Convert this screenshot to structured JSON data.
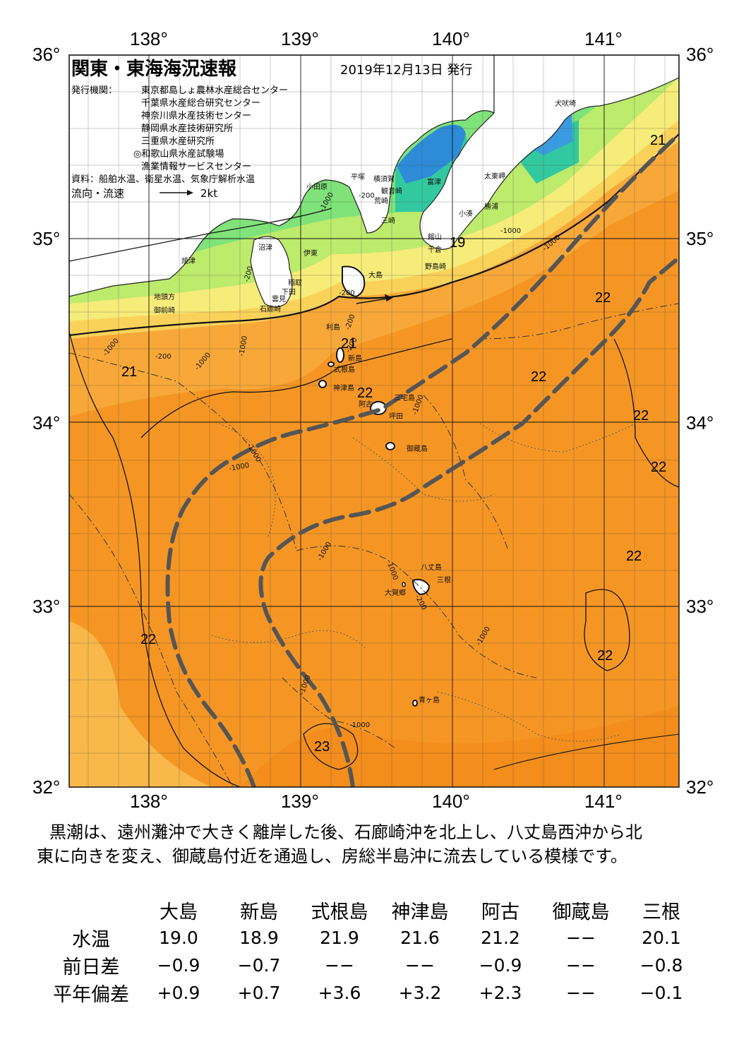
{
  "map": {
    "title": "関東・東海海況速報",
    "date": "2019年12月13日 発行",
    "issuer_label": "発行機関：",
    "issuers": [
      "東京都島しょ農林水産総合センター",
      "千葉県水産総合研究センター",
      "神奈川県水産技術センター",
      "静岡県水産技術研究所",
      "三重県水産研究所",
      "◎和歌山県水産試験場",
      "漁業情報サービスセンター"
    ],
    "sources": "資料：船舶水温、衛星水温、気象庁解析水温",
    "current_label": "流向・流速",
    "current_scale": "2kt",
    "lon_labels": [
      "138°",
      "139°",
      "140°",
      "141°"
    ],
    "lat_labels": [
      "36°",
      "35°",
      "34°",
      "33°",
      "32°"
    ],
    "temp_labels": [
      "21",
      "19",
      "22",
      "21",
      "21",
      "22",
      "22",
      "22",
      "22",
      "22",
      "22",
      "22",
      "23"
    ],
    "depth_labels": [
      "-1000",
      "-200",
      "-1000",
      "-1000",
      "-200",
      "-1000",
      "-200",
      "-200",
      "-1000",
      "-1000",
      "-200",
      "-1000",
      "-1000",
      "-1000",
      "-1000",
      "-1000",
      "-1000",
      "-1000",
      "-200",
      "-1000",
      "-200"
    ],
    "places": [
      "犬吠埼",
      "太東岬",
      "勝浦",
      "小湊",
      "富津",
      "横須賀",
      "観音崎",
      "平塚",
      "小田原",
      "荒崎",
      "三崎",
      "館山",
      "千倉",
      "野島崎",
      "沼津",
      "伊東",
      "焼津",
      "稲取",
      "下田",
      "雲見",
      "石廊崎",
      "地頭方",
      "御前崎",
      "大島",
      "利島",
      "新島",
      "式根島",
      "神津島",
      "三宅島",
      "阿古",
      "坪田",
      "御蔵島",
      "八丈島",
      "三根",
      "大賀郷",
      "青ヶ島"
    ]
  },
  "description": {
    "line1": "黒潮は、遠州灘沖で大きく離岸した後、石廊崎沖を北上し、八丈島西沖から北",
    "line2": "東に向きを変え、御蔵島付近を通過し、房総半島沖に流去している模様です。"
  },
  "table": {
    "columns": [
      "大島",
      "新島",
      "式根島",
      "神津島",
      "阿古",
      "御蔵島",
      "三根"
    ],
    "rows": [
      {
        "label": "水温",
        "values": [
          "19.0",
          "18.9",
          "21.9",
          "21.6",
          "21.2",
          "−−",
          "20.1"
        ]
      },
      {
        "label": "前日差",
        "values": [
          "−0.9",
          "−0.7",
          "−−",
          "−−",
          "−0.9",
          "−−",
          "−0.8"
        ]
      },
      {
        "label": "平年偏差",
        "values": [
          "+0.9",
          "+0.7",
          "+3.6",
          "+3.2",
          "+2.3",
          "−−",
          "−0.1"
        ]
      }
    ]
  },
  "colors": {
    "warm": "#f59624",
    "mild": "#f8b84a",
    "cool_yellow": "#f6ec7a",
    "green": "#7fe37a",
    "teal": "#33c9a0",
    "blue": "#2e8bd8",
    "kuroshio_axis": "#555555"
  }
}
